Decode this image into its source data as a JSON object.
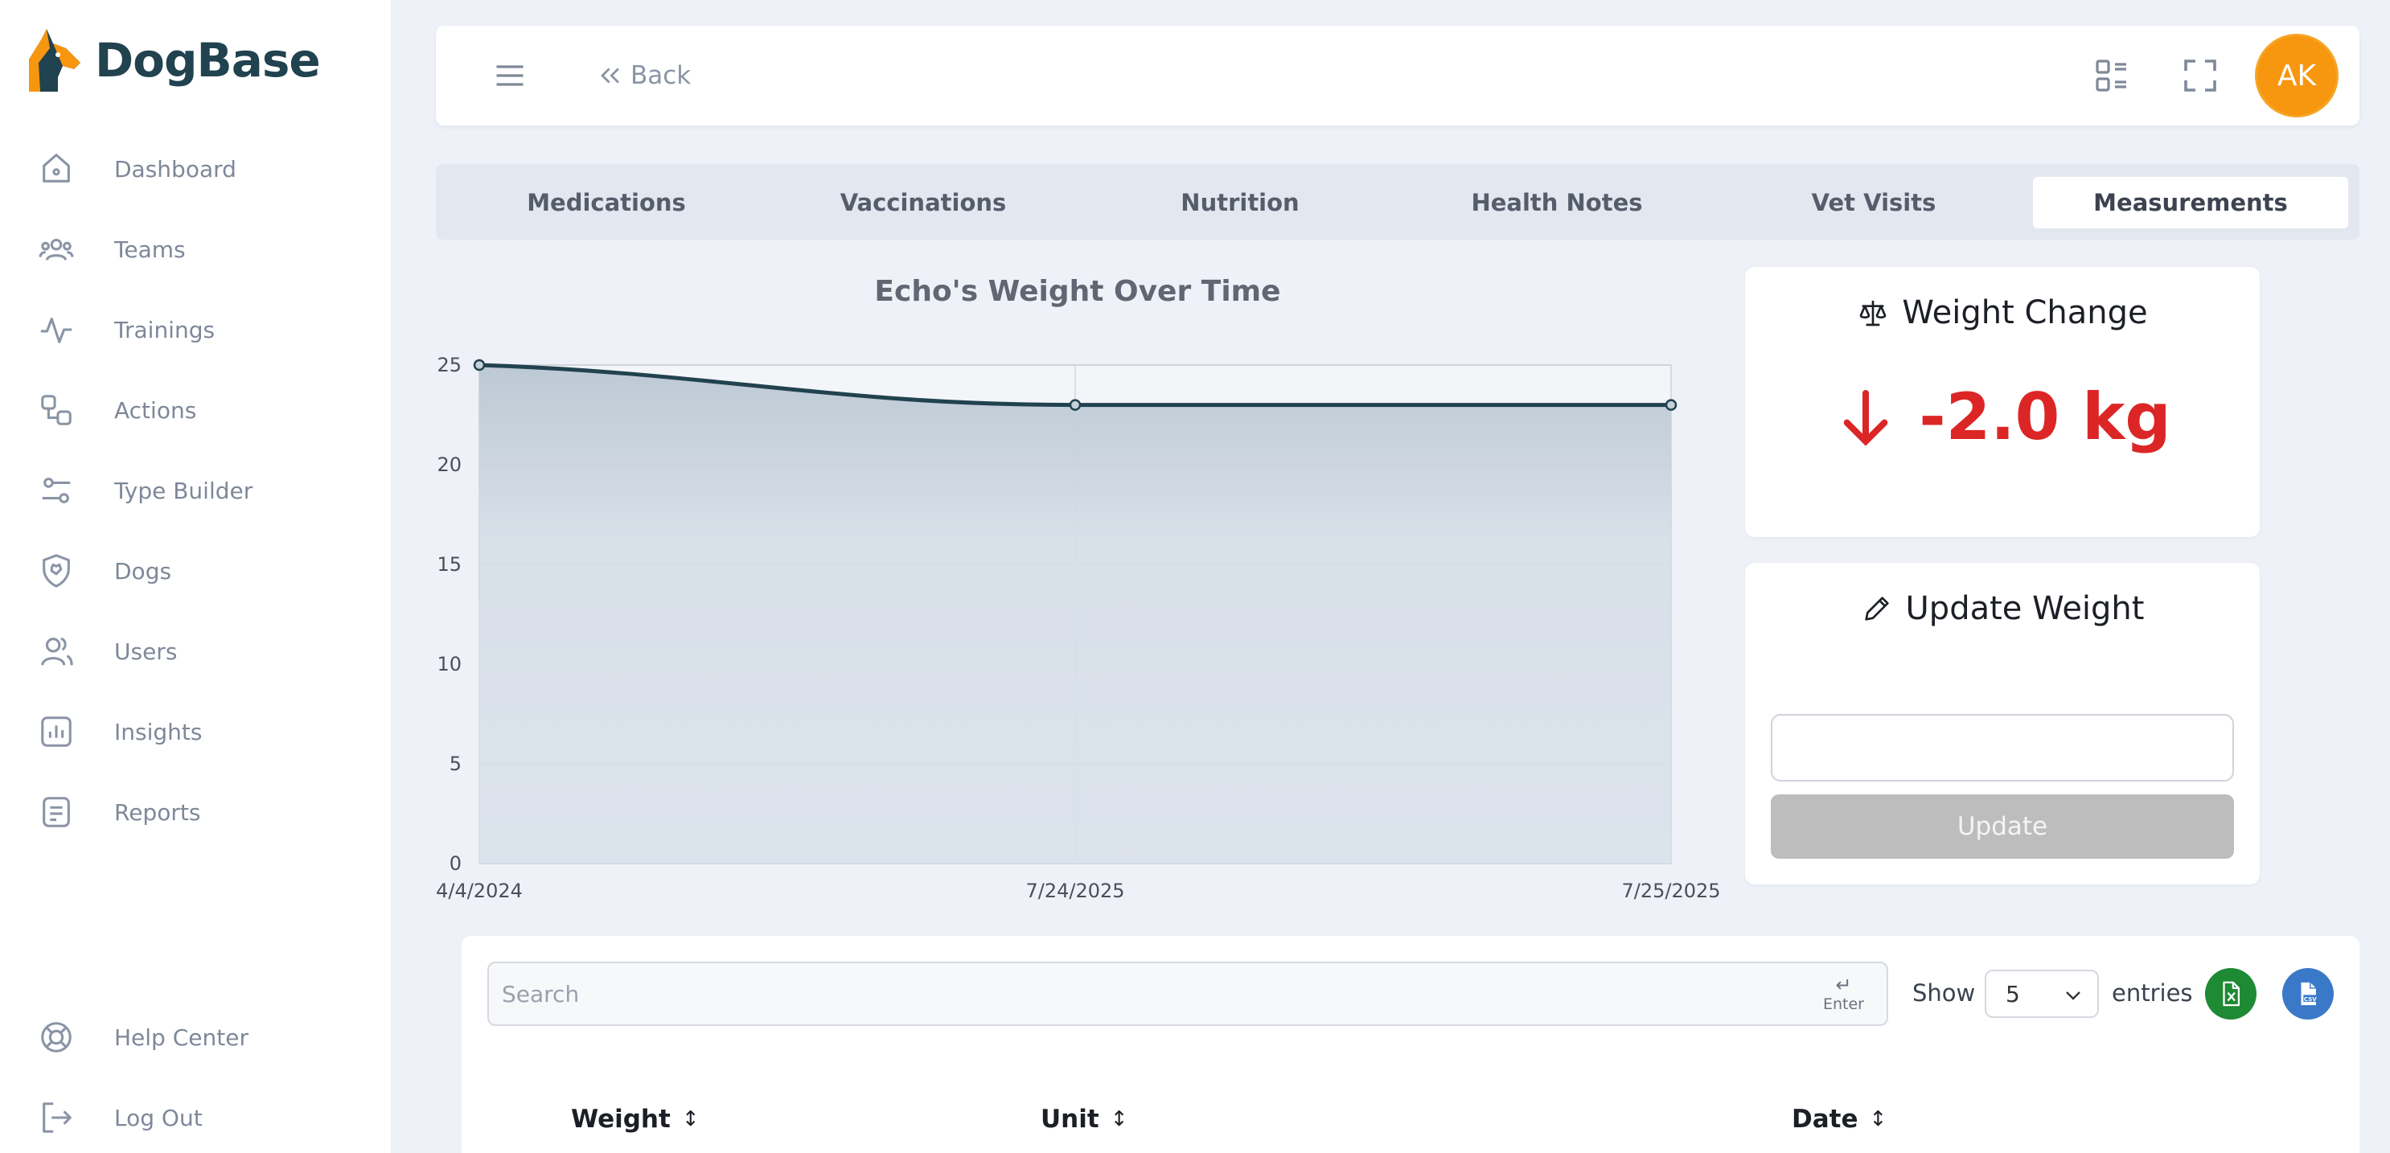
{
  "brand": {
    "name": "DogBase"
  },
  "sidebar": {
    "items": [
      {
        "label": "Dashboard",
        "icon": "home-icon"
      },
      {
        "label": "Teams",
        "icon": "teams-icon"
      },
      {
        "label": "Trainings",
        "icon": "activity-icon"
      },
      {
        "label": "Actions",
        "icon": "actions-icon"
      },
      {
        "label": "Type Builder",
        "icon": "sliders-icon"
      },
      {
        "label": "Dogs",
        "icon": "dog-shield-icon"
      },
      {
        "label": "Users",
        "icon": "user-icon"
      },
      {
        "label": "Insights",
        "icon": "chart-icon"
      },
      {
        "label": "Reports",
        "icon": "report-icon"
      }
    ],
    "bottom": [
      {
        "label": "Help Center",
        "icon": "lifebuoy-icon"
      },
      {
        "label": "Log Out",
        "icon": "logout-icon"
      }
    ]
  },
  "topbar": {
    "back_label": "Back",
    "avatar_initials": "AK"
  },
  "tabs": [
    {
      "label": "Medications",
      "active": false
    },
    {
      "label": "Vaccinations",
      "active": false
    },
    {
      "label": "Nutrition",
      "active": false
    },
    {
      "label": "Health Notes",
      "active": false
    },
    {
      "label": "Vet Visits",
      "active": false
    },
    {
      "label": "Measurements",
      "active": true
    }
  ],
  "chart_data": {
    "type": "area",
    "title": "Echo's Weight Over Time",
    "x": [
      "4/4/2024",
      "7/24/2025",
      "7/25/2025"
    ],
    "values": [
      25,
      23,
      23
    ],
    "ylim": [
      0,
      25
    ],
    "yticks": [
      0,
      5,
      10,
      15,
      20,
      25
    ],
    "grid": true,
    "line_color": "#21424f",
    "fill_color": "#c5d0db"
  },
  "weight_change": {
    "title": "Weight Change",
    "value": "-2.0 kg",
    "color": "#dc2626"
  },
  "update_weight": {
    "title": "Update Weight",
    "input_value": "",
    "button_label": "Update"
  },
  "table": {
    "search_placeholder": "Search",
    "enter_hint": "Enter",
    "show_label": "Show",
    "entries_value": "5",
    "entries_label": "entries",
    "columns": [
      "Weight",
      "Unit",
      "Date"
    ]
  }
}
